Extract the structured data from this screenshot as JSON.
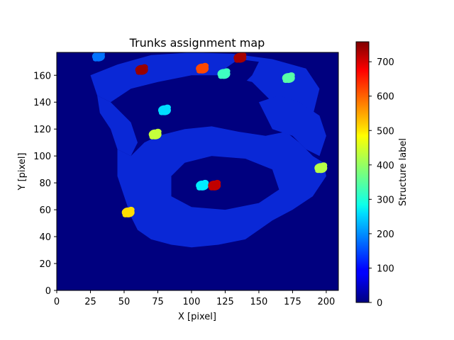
{
  "chart_data": {
    "type": "heatmap",
    "title": "Trunks assignment map",
    "xlabel": "X [pixel]",
    "ylabel": "Y [pixel]",
    "xlim": [
      0,
      209
    ],
    "ylim": [
      0,
      177
    ],
    "x_ticks": [
      0,
      25,
      50,
      75,
      100,
      125,
      150,
      175,
      200
    ],
    "y_ticks": [
      0,
      20,
      40,
      60,
      80,
      100,
      120,
      140,
      160
    ],
    "colorbar": {
      "label": "Structure label",
      "colormap": "jet",
      "range": [
        0,
        758
      ],
      "ticks": [
        0,
        100,
        200,
        300,
        400,
        500,
        600,
        700
      ]
    },
    "background_value": 0,
    "colors": {
      "background": "#00007f",
      "region": "#0a28d6"
    },
    "structures": [
      {
        "x": 31,
        "y": 174,
        "label": 180
      },
      {
        "x": 63,
        "y": 164,
        "label": 740
      },
      {
        "x": 108,
        "y": 165,
        "label": 610
      },
      {
        "x": 124,
        "y": 161,
        "label": 330
      },
      {
        "x": 136,
        "y": 173,
        "label": 730
      },
      {
        "x": 172,
        "y": 158,
        "label": 350
      },
      {
        "x": 80,
        "y": 134,
        "label": 260
      },
      {
        "x": 73,
        "y": 116,
        "label": 430
      },
      {
        "x": 196,
        "y": 91,
        "label": 420
      },
      {
        "x": 108,
        "y": 78,
        "label": 270
      },
      {
        "x": 117,
        "y": 78,
        "label": 710
      },
      {
        "x": 53,
        "y": 58,
        "label": 500
      }
    ]
  }
}
